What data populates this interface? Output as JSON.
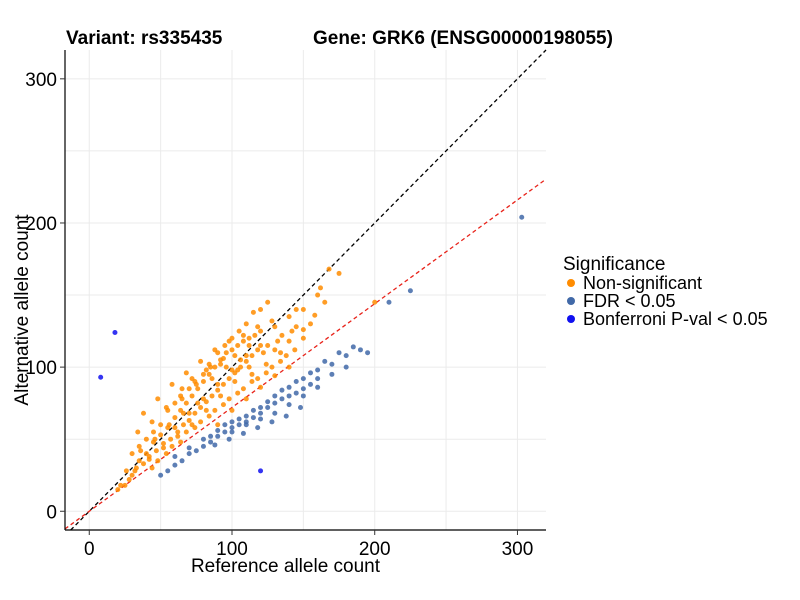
{
  "header": {
    "variant_label": "Variant: rs335435",
    "gene_label": "Gene: GRK6 (ENSG00000198055)"
  },
  "chart_data": {
    "type": "scatter",
    "xlabel": "Reference allele count",
    "ylabel": "Alternative allele count",
    "xlim": [
      -17,
      320
    ],
    "ylim": [
      -13,
      320
    ],
    "xticks": [
      0,
      100,
      200,
      300
    ],
    "yticks": [
      0,
      100,
      200,
      300
    ],
    "grid": true,
    "legend": {
      "title": "Significance",
      "position": "right",
      "entries": [
        {
          "label": "Non-significant",
          "color": "#FF8C00"
        },
        {
          "label": "FDR < 0.05",
          "color": "#4169A8"
        },
        {
          "label": "Bonferroni P-val < 0.05",
          "color": "#1010F0"
        }
      ]
    },
    "reference_lines": [
      {
        "name": "identity",
        "slope": 1.0,
        "intercept": 0,
        "color": "#000000",
        "style": "dashed"
      },
      {
        "name": "fit",
        "slope": 0.72,
        "intercept": 0,
        "color": "#E8231A",
        "style": "dashed"
      }
    ],
    "series": [
      {
        "name": "Non-significant",
        "color": "#FF8C00",
        "points": [
          [
            25,
            18
          ],
          [
            28,
            22
          ],
          [
            30,
            25
          ],
          [
            33,
            30
          ],
          [
            35,
            35
          ],
          [
            38,
            33
          ],
          [
            40,
            40
          ],
          [
            42,
            38
          ],
          [
            45,
            48
          ],
          [
            47,
            42
          ],
          [
            50,
            53
          ],
          [
            52,
            47
          ],
          [
            55,
            58
          ],
          [
            57,
            50
          ],
          [
            60,
            65
          ],
          [
            62,
            55
          ],
          [
            64,
            70
          ],
          [
            66,
            60
          ],
          [
            68,
            75
          ],
          [
            70,
            63
          ],
          [
            72,
            80
          ],
          [
            74,
            68
          ],
          [
            76,
            85
          ],
          [
            78,
            72
          ],
          [
            80,
            90
          ],
          [
            82,
            76
          ],
          [
            84,
            95
          ],
          [
            86,
            80
          ],
          [
            88,
            100
          ],
          [
            90,
            84
          ],
          [
            92,
            105
          ],
          [
            94,
            88
          ],
          [
            96,
            110
          ],
          [
            98,
            92
          ],
          [
            100,
            112
          ],
          [
            102,
            96
          ],
          [
            104,
            115
          ],
          [
            106,
            100
          ],
          [
            108,
            118
          ],
          [
            110,
            104
          ],
          [
            112,
            120
          ],
          [
            114,
            108
          ],
          [
            116,
            122
          ],
          [
            118,
            112
          ],
          [
            120,
            125
          ],
          [
            125,
            115
          ],
          [
            130,
            128
          ],
          [
            135,
            122
          ],
          [
            140,
            135
          ],
          [
            145,
            128
          ],
          [
            150,
            140
          ],
          [
            160,
            150
          ],
          [
            162,
            155
          ],
          [
            165,
            145
          ],
          [
            168,
            168
          ],
          [
            175,
            165
          ],
          [
            200,
            145
          ],
          [
            55,
            70
          ],
          [
            60,
            75
          ],
          [
            65,
            78
          ],
          [
            70,
            85
          ],
          [
            75,
            88
          ],
          [
            80,
            95
          ],
          [
            85,
            100
          ],
          [
            90,
            110
          ],
          [
            95,
            115
          ],
          [
            100,
            120
          ],
          [
            105,
            125
          ],
          [
            110,
            130
          ],
          [
            115,
            138
          ],
          [
            120,
            140
          ],
          [
            125,
            145
          ],
          [
            35,
            45
          ],
          [
            40,
            50
          ],
          [
            45,
            55
          ],
          [
            50,
            60
          ],
          [
            30,
            40
          ],
          [
            48,
            35
          ],
          [
            58,
            45
          ],
          [
            68,
            55
          ],
          [
            78,
            62
          ],
          [
            88,
            70
          ],
          [
            98,
            78
          ],
          [
            108,
            85
          ],
          [
            118,
            92
          ],
          [
            128,
            100
          ],
          [
            138,
            108
          ],
          [
            65,
            85
          ],
          [
            72,
            92
          ],
          [
            82,
            98
          ],
          [
            92,
            102
          ],
          [
            102,
            108
          ],
          [
            112,
            115
          ],
          [
            20,
            15
          ],
          [
            22,
            18
          ],
          [
            26,
            28
          ],
          [
            44,
            30
          ],
          [
            54,
            40
          ],
          [
            64,
            48
          ],
          [
            74,
            58
          ],
          [
            84,
            66
          ],
          [
            94,
            74
          ],
          [
            104,
            82
          ],
          [
            114,
            90
          ],
          [
            124,
            96
          ],
          [
            134,
            104
          ],
          [
            144,
            112
          ],
          [
            150,
            120
          ],
          [
            155,
            130
          ],
          [
            142,
            125
          ],
          [
            132,
            118
          ],
          [
            122,
            110
          ],
          [
            112,
            100
          ],
          [
            102,
            90
          ],
          [
            92,
            80
          ],
          [
            82,
            70
          ],
          [
            72,
            60
          ],
          [
            62,
            52
          ],
          [
            52,
            44
          ],
          [
            42,
            36
          ],
          [
            32,
            28
          ],
          [
            86,
            92
          ],
          [
            96,
            100
          ],
          [
            106,
            105
          ],
          [
            76,
            75
          ],
          [
            66,
            68
          ],
          [
            56,
            60
          ],
          [
            46,
            50
          ],
          [
            36,
            42
          ],
          [
            90,
            60
          ],
          [
            100,
            70
          ],
          [
            110,
            78
          ],
          [
            120,
            86
          ],
          [
            130,
            94
          ],
          [
            140,
            100
          ],
          [
            60,
            58
          ],
          [
            70,
            68
          ],
          [
            80,
            78
          ],
          [
            90,
            88
          ],
          [
            100,
            98
          ],
          [
            110,
            108
          ],
          [
            120,
            115
          ],
          [
            130,
            112
          ],
          [
            140,
            118
          ],
          [
            150,
            126
          ],
          [
            158,
            136
          ],
          [
            145,
            140
          ],
          [
            128,
            132
          ],
          [
            118,
            128
          ],
          [
            108,
            122
          ],
          [
            98,
            118
          ],
          [
            88,
            112
          ],
          [
            78,
            104
          ],
          [
            68,
            96
          ],
          [
            58,
            88
          ],
          [
            48,
            78
          ],
          [
            38,
            68
          ],
          [
            34,
            55
          ],
          [
            44,
            62
          ],
          [
            54,
            72
          ],
          [
            64,
            80
          ],
          [
            74,
            90
          ],
          [
            84,
            102
          ],
          [
            94,
            106
          ],
          [
            104,
            98
          ],
          [
            114,
            95
          ],
          [
            124,
            102
          ],
          [
            134,
            110
          ]
        ]
      },
      {
        "name": "FDR < 0.05",
        "color": "#4169A8",
        "points": [
          [
            50,
            25
          ],
          [
            55,
            28
          ],
          [
            60,
            32
          ],
          [
            65,
            35
          ],
          [
            70,
            40
          ],
          [
            75,
            42
          ],
          [
            80,
            45
          ],
          [
            85,
            48
          ],
          [
            90,
            52
          ],
          [
            95,
            55
          ],
          [
            100,
            58
          ],
          [
            105,
            60
          ],
          [
            110,
            62
          ],
          [
            115,
            65
          ],
          [
            120,
            68
          ],
          [
            125,
            72
          ],
          [
            130,
            75
          ],
          [
            135,
            78
          ],
          [
            140,
            80
          ],
          [
            145,
            82
          ],
          [
            150,
            85
          ],
          [
            155,
            88
          ],
          [
            160,
            92
          ],
          [
            80,
            50
          ],
          [
            90,
            56
          ],
          [
            100,
            62
          ],
          [
            110,
            66
          ],
          [
            120,
            72
          ],
          [
            130,
            80
          ],
          [
            140,
            86
          ],
          [
            150,
            92
          ],
          [
            160,
            98
          ],
          [
            170,
            102
          ],
          [
            180,
            108
          ],
          [
            190,
            112
          ],
          [
            195,
            110
          ],
          [
            210,
            145
          ],
          [
            225,
            153
          ],
          [
            303,
            204
          ],
          [
            60,
            38
          ],
          [
            70,
            44
          ],
          [
            85,
            52
          ],
          [
            95,
            60
          ],
          [
            105,
            64
          ],
          [
            115,
            70
          ],
          [
            125,
            76
          ],
          [
            135,
            84
          ],
          [
            145,
            90
          ],
          [
            155,
            96
          ],
          [
            165,
            104
          ],
          [
            175,
            110
          ],
          [
            185,
            114
          ],
          [
            100,
            55
          ],
          [
            110,
            60
          ],
          [
            120,
            64
          ],
          [
            130,
            68
          ],
          [
            140,
            74
          ],
          [
            150,
            80
          ],
          [
            160,
            86
          ],
          [
            170,
            95
          ],
          [
            180,
            100
          ],
          [
            88,
            46
          ],
          [
            98,
            50
          ],
          [
            108,
            54
          ],
          [
            118,
            58
          ],
          [
            128,
            62
          ],
          [
            138,
            66
          ],
          [
            148,
            72
          ]
        ]
      },
      {
        "name": "Bonferroni P-val < 0.05",
        "color": "#1010F0",
        "points": [
          [
            18,
            124
          ],
          [
            8,
            93
          ],
          [
            120,
            28
          ]
        ]
      }
    ]
  }
}
